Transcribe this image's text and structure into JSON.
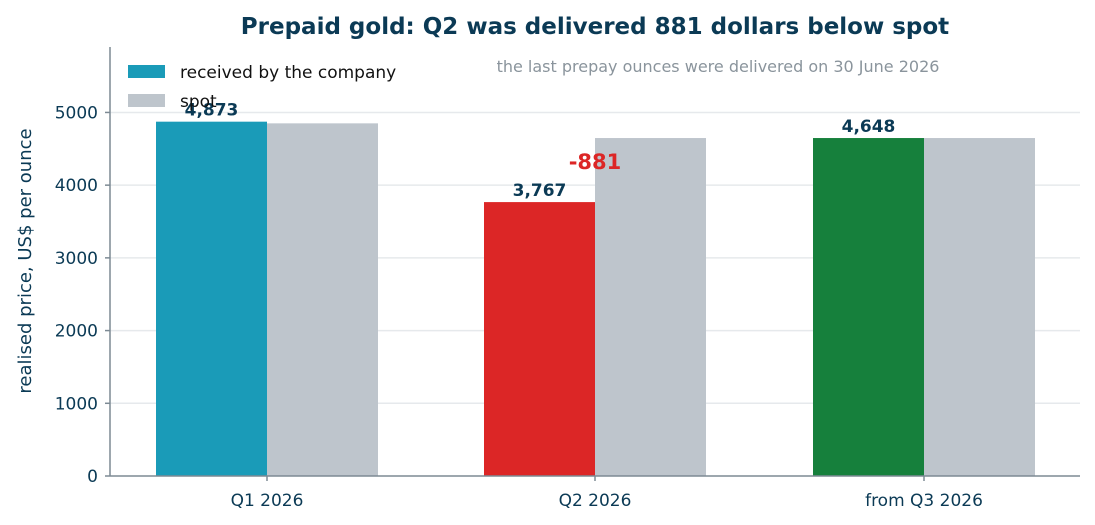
{
  "chart_data": {
    "type": "bar",
    "title": "Prepaid gold: Q2 was delivered 881 dollars below spot",
    "note": "the last prepay ounces were delivered on 30 June 2026",
    "xlabel": "",
    "ylabel": "realised price, US$ per ounce",
    "ylim": [
      0,
      5900
    ],
    "yticks": [
      0,
      1000,
      2000,
      3000,
      4000,
      5000
    ],
    "categories": [
      "Q1 2026",
      "Q2 2026",
      "from Q3 2026"
    ],
    "series": [
      {
        "name": "received by the company",
        "values": [
          4873,
          3767,
          4648
        ],
        "colors": [
          "#1a9bb8",
          "#dc2626",
          "#16803c"
        ],
        "labels": [
          "4,873",
          "3,767",
          "4,648"
        ]
      },
      {
        "name": "spot",
        "values": [
          4850,
          4648,
          4648
        ],
        "colors": [
          "#bec5cc",
          "#bec5cc",
          "#bec5cc"
        ]
      }
    ],
    "annotations": [
      {
        "category": "Q2 2026",
        "text": "-881",
        "color": "#dc2626"
      }
    ],
    "grid": "horizontal",
    "legend_position": "top-left",
    "colors": {
      "title": "#0b3a55",
      "note": "#8a949c",
      "axis": "#7d8a94",
      "grid": "#e6e9ec",
      "text": "#0b3a55"
    }
  }
}
